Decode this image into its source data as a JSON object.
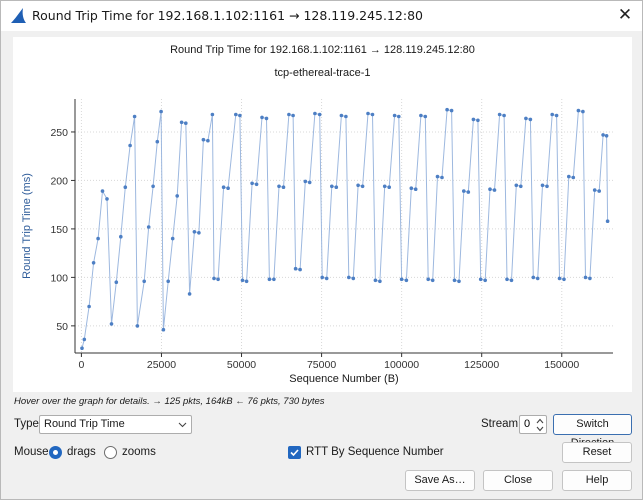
{
  "window": {
    "title": "Round Trip Time for 192.168.1.102:1161 → 128.119.245.12:80",
    "close_glyph": "✕",
    "icon": "wireshark-fin-icon"
  },
  "chart_data": {
    "type": "scatter",
    "title": "Round Trip Time for 192.168.1.102:1161 → 128.119.245.12:80",
    "subtitle": "tcp-ethereal-trace-1",
    "xlabel": "Sequence Number (B)",
    "ylabel": "Round Trip Time (ms)",
    "xlim": [
      -2000,
      166000
    ],
    "ylim": [
      22,
      284
    ],
    "x_ticks": [
      0,
      25000,
      50000,
      75000,
      100000,
      125000,
      150000
    ],
    "x_tick_labels": [
      "0",
      "25000",
      "50000",
      "75000",
      "100000",
      "125000",
      "150000"
    ],
    "y_ticks": [
      50,
      100,
      150,
      200,
      250
    ],
    "y_tick_labels": [
      "50",
      "100",
      "150",
      "200",
      "250"
    ],
    "grid": true,
    "connected": true,
    "color": "#4d7fc4",
    "points": [
      [
        200,
        27
      ],
      [
        900,
        36
      ],
      [
        2400,
        70
      ],
      [
        3800,
        115
      ],
      [
        5200,
        140
      ],
      [
        6600,
        189
      ],
      [
        8000,
        181
      ],
      [
        9400,
        52
      ],
      [
        10900,
        95
      ],
      [
        12300,
        142
      ],
      [
        13700,
        193
      ],
      [
        15200,
        236
      ],
      [
        16600,
        266
      ],
      [
        17500,
        50
      ],
      [
        19600,
        96
      ],
      [
        21000,
        152
      ],
      [
        22400,
        194
      ],
      [
        23700,
        240
      ],
      [
        24900,
        271
      ],
      [
        25600,
        46
      ],
      [
        27100,
        96
      ],
      [
        28500,
        140
      ],
      [
        29900,
        184
      ],
      [
        31300,
        260
      ],
      [
        32600,
        259
      ],
      [
        33800,
        83
      ],
      [
        35300,
        147
      ],
      [
        36700,
        146
      ],
      [
        38100,
        242
      ],
      [
        39500,
        241
      ],
      [
        40900,
        268
      ],
      [
        41400,
        99
      ],
      [
        42700,
        98
      ],
      [
        44400,
        193
      ],
      [
        45800,
        192
      ],
      [
        48200,
        268
      ],
      [
        49500,
        267
      ],
      [
        50300,
        97
      ],
      [
        51600,
        96
      ],
      [
        53300,
        197
      ],
      [
        54700,
        196
      ],
      [
        56400,
        265
      ],
      [
        57800,
        264
      ],
      [
        58700,
        98
      ],
      [
        60100,
        98
      ],
      [
        61700,
        194
      ],
      [
        63100,
        193
      ],
      [
        64800,
        268
      ],
      [
        66100,
        267
      ],
      [
        66900,
        109
      ],
      [
        68300,
        108
      ],
      [
        69900,
        199
      ],
      [
        71300,
        198
      ],
      [
        72900,
        269
      ],
      [
        74400,
        268
      ],
      [
        75200,
        100
      ],
      [
        76600,
        99
      ],
      [
        78200,
        194
      ],
      [
        79600,
        193
      ],
      [
        81200,
        267
      ],
      [
        82600,
        266
      ],
      [
        83500,
        100
      ],
      [
        84900,
        99
      ],
      [
        86400,
        195
      ],
      [
        87800,
        194
      ],
      [
        89500,
        269
      ],
      [
        90900,
        268
      ],
      [
        91800,
        97
      ],
      [
        93200,
        96
      ],
      [
        94700,
        194
      ],
      [
        96100,
        193
      ],
      [
        97800,
        267
      ],
      [
        99100,
        266
      ],
      [
        100000,
        98
      ],
      [
        101500,
        97
      ],
      [
        103000,
        192
      ],
      [
        104400,
        191
      ],
      [
        106000,
        267
      ],
      [
        107400,
        266
      ],
      [
        108300,
        98
      ],
      [
        109700,
        97
      ],
      [
        111200,
        204
      ],
      [
        112600,
        203
      ],
      [
        114200,
        273
      ],
      [
        115600,
        272
      ],
      [
        116500,
        97
      ],
      [
        117900,
        96
      ],
      [
        119400,
        189
      ],
      [
        120800,
        188
      ],
      [
        122400,
        263
      ],
      [
        123800,
        262
      ],
      [
        124700,
        98
      ],
      [
        126100,
        97
      ],
      [
        127600,
        191
      ],
      [
        129000,
        190
      ],
      [
        130600,
        268
      ],
      [
        132000,
        267
      ],
      [
        132900,
        98
      ],
      [
        134300,
        97
      ],
      [
        135800,
        195
      ],
      [
        137200,
        194
      ],
      [
        138800,
        264
      ],
      [
        140200,
        263
      ],
      [
        141100,
        100
      ],
      [
        142500,
        99
      ],
      [
        144000,
        195
      ],
      [
        145400,
        194
      ],
      [
        147000,
        268
      ],
      [
        148400,
        267
      ],
      [
        149300,
        99
      ],
      [
        150700,
        98
      ],
      [
        152200,
        204
      ],
      [
        153600,
        203
      ],
      [
        155200,
        272
      ],
      [
        156600,
        271
      ],
      [
        157400,
        100
      ],
      [
        158800,
        99
      ],
      [
        160300,
        190
      ],
      [
        161700,
        189
      ],
      [
        162900,
        247
      ],
      [
        164000,
        246
      ],
      [
        164300,
        158
      ]
    ]
  },
  "hint_text": "Hover over the graph for details. → 125 pkts, 164kB ← 76 pkts, 730 bytes",
  "controls": {
    "type_label": "Type",
    "type_value": "Round Trip Time",
    "stream_label": "Stream",
    "stream_value": "0",
    "switch_direction_label": "Switch Direction",
    "mouse_label": "Mouse",
    "drags_label": "drags",
    "zooms_label": "zooms",
    "mouse_mode": "drags",
    "rtt_by_seq_label": "RTT By Sequence Number",
    "rtt_by_seq_checked": true,
    "reset_label": "Reset",
    "save_as_label": "Save As…",
    "close_label": "Close",
    "help_label": "Help"
  },
  "colors": {
    "accent": "#2167c0",
    "series": "#4d7fc4",
    "axis_label": "#2e5c9a"
  }
}
